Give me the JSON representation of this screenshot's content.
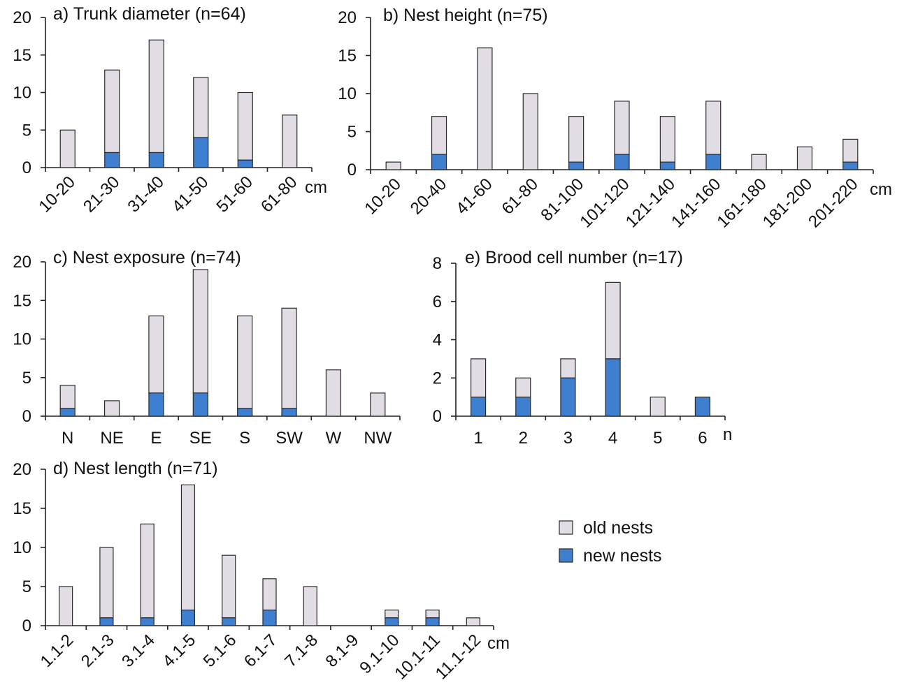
{
  "colors": {
    "old_nests": "#e2dde4",
    "new_nests": "#3f7fcf",
    "axis": "#222222"
  },
  "legend": {
    "old_label": "old nests",
    "new_label": "new nests"
  },
  "chart_data": [
    {
      "id": "a",
      "type": "bar",
      "stacked": true,
      "title": "a) Trunk diameter (n=64)",
      "unit": "cm",
      "categories": [
        "10-20",
        "21-30",
        "31-40",
        "41-50",
        "51-60",
        "61-80"
      ],
      "ylim": [
        0,
        20
      ],
      "yticks": [
        0,
        5,
        10,
        15,
        20
      ],
      "rotate_labels": true,
      "series": [
        {
          "name": "new nests",
          "values": [
            0,
            2,
            2,
            4,
            1,
            0
          ]
        },
        {
          "name": "old nests",
          "values": [
            5,
            11,
            15,
            8,
            9,
            7
          ]
        }
      ]
    },
    {
      "id": "b",
      "type": "bar",
      "stacked": true,
      "title": "b) Nest height (n=75)",
      "unit": "cm",
      "categories": [
        "10-20",
        "20-40",
        "41-60",
        "61-80",
        "81-100",
        "101-120",
        "121-140",
        "141-160",
        "161-180",
        "181-200",
        "201-220"
      ],
      "ylim": [
        0,
        20
      ],
      "yticks": [
        0,
        5,
        10,
        15,
        20
      ],
      "rotate_labels": true,
      "series": [
        {
          "name": "new nests",
          "values": [
            0,
            2,
            0,
            0,
            1,
            2,
            1,
            2,
            0,
            0,
            1
          ]
        },
        {
          "name": "old nests",
          "values": [
            1,
            5,
            16,
            10,
            6,
            7,
            6,
            7,
            2,
            3,
            3
          ]
        }
      ]
    },
    {
      "id": "c",
      "type": "bar",
      "stacked": true,
      "title": "c) Nest exposure (n=74)",
      "unit": "",
      "categories": [
        "N",
        "NE",
        "E",
        "SE",
        "S",
        "SW",
        "W",
        "NW"
      ],
      "ylim": [
        0,
        20
      ],
      "yticks": [
        0,
        5,
        10,
        15,
        20
      ],
      "rotate_labels": false,
      "series": [
        {
          "name": "new nests",
          "values": [
            1,
            0,
            3,
            3,
            1,
            1,
            0,
            0
          ]
        },
        {
          "name": "old nests",
          "values": [
            3,
            2,
            10,
            16,
            12,
            13,
            6,
            3
          ]
        }
      ]
    },
    {
      "id": "e",
      "type": "bar",
      "stacked": true,
      "title": "e) Brood cell number (n=17)",
      "unit": "n",
      "categories": [
        "1",
        "2",
        "3",
        "4",
        "5",
        "6"
      ],
      "ylim": [
        0,
        8
      ],
      "yticks": [
        0,
        2,
        4,
        6,
        8
      ],
      "rotate_labels": false,
      "series": [
        {
          "name": "new nests",
          "values": [
            1,
            1,
            2,
            3,
            0,
            1
          ]
        },
        {
          "name": "old nests",
          "values": [
            2,
            1,
            1,
            4,
            1,
            0
          ]
        }
      ]
    },
    {
      "id": "d",
      "type": "bar",
      "stacked": true,
      "title": "d) Nest length (n=71)",
      "unit": "cm",
      "categories": [
        "1.1-2",
        "2.1-3",
        "3.1-4",
        "4.1-5",
        "5.1-6",
        "6.1-7",
        "7.1-8",
        "8.1-9",
        "9.1-10",
        "10.1-11",
        "11.1-12"
      ],
      "ylim": [
        0,
        20
      ],
      "yticks": [
        0,
        5,
        10,
        15,
        20
      ],
      "rotate_labels": true,
      "series": [
        {
          "name": "new nests",
          "values": [
            0,
            1,
            1,
            2,
            1,
            2,
            0,
            0,
            1,
            1,
            0
          ]
        },
        {
          "name": "old nests",
          "values": [
            5,
            9,
            12,
            16,
            8,
            4,
            5,
            0,
            1,
            1,
            1
          ]
        }
      ]
    }
  ]
}
